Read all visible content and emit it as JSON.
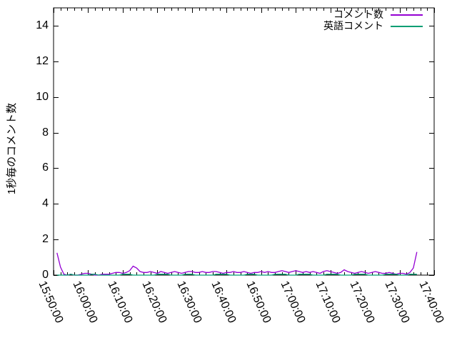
{
  "window": {
    "background": "#ffffff",
    "border_color": "#000000"
  },
  "chart_data": {
    "type": "line",
    "title": "",
    "xlabel": "",
    "ylabel": "1秒毎のコメント数",
    "ylim": [
      0,
      15
    ],
    "ytick_labels": [
      "0",
      "2",
      "4",
      "6",
      "8",
      "10",
      "12",
      "14"
    ],
    "ytick_values": [
      0,
      2,
      4,
      6,
      8,
      10,
      12,
      14
    ],
    "xtick_labels": [
      "15:50:00",
      "16:00:00",
      "16:10:00",
      "16:20:00",
      "16:30:00",
      "16:40:00",
      "16:50:00",
      "17:00:00",
      "17:10:00",
      "17:20:00",
      "17:30:00",
      "17:40:00"
    ],
    "x_axis_start": "15:50:00",
    "x_axis_end": "17:40:00",
    "x_range_minutes": [
      0,
      110
    ],
    "x_major_interval_minutes": 10,
    "x_minor_interval_minutes": 2,
    "grid": false,
    "legend_position": "top-right-inside",
    "series": [
      {
        "name": "コメント数",
        "color": "#9400d3",
        "points": [
          [
            1,
            1.25
          ],
          [
            2,
            0.45
          ],
          [
            3,
            0.05
          ],
          [
            4,
            0
          ],
          [
            5,
            0.05
          ],
          [
            6,
            0
          ],
          [
            7,
            0
          ],
          [
            8,
            0.05
          ],
          [
            9,
            0.1
          ],
          [
            10,
            0.1
          ],
          [
            11,
            0.05
          ],
          [
            12,
            0
          ],
          [
            13,
            0
          ],
          [
            14,
            0.05
          ],
          [
            15,
            0.05
          ],
          [
            16,
            0.05
          ],
          [
            17,
            0.1
          ],
          [
            18,
            0.15
          ],
          [
            19,
            0.15
          ],
          [
            20,
            0.1
          ],
          [
            21,
            0.15
          ],
          [
            22,
            0.25
          ],
          [
            23,
            0.5
          ],
          [
            24,
            0.4
          ],
          [
            25,
            0.2
          ],
          [
            26,
            0.15
          ],
          [
            27,
            0.15
          ],
          [
            28,
            0.2
          ],
          [
            29,
            0.15
          ],
          [
            30,
            0.1
          ],
          [
            31,
            0.2
          ],
          [
            32,
            0.15
          ],
          [
            33,
            0.1
          ],
          [
            34,
            0.15
          ],
          [
            35,
            0.2
          ],
          [
            36,
            0.15
          ],
          [
            37,
            0.1
          ],
          [
            38,
            0.15
          ],
          [
            39,
            0.2
          ],
          [
            40,
            0.2
          ],
          [
            41,
            0.15
          ],
          [
            42,
            0.15
          ],
          [
            43,
            0.2
          ],
          [
            44,
            0.15
          ],
          [
            45,
            0.15
          ],
          [
            46,
            0.2
          ],
          [
            47,
            0.2
          ],
          [
            48,
            0.15
          ],
          [
            49,
            0.1
          ],
          [
            50,
            0.15
          ],
          [
            51,
            0.15
          ],
          [
            52,
            0.2
          ],
          [
            53,
            0.15
          ],
          [
            54,
            0.15
          ],
          [
            55,
            0.2
          ],
          [
            56,
            0.15
          ],
          [
            57,
            0.1
          ],
          [
            58,
            0.15
          ],
          [
            59,
            0.15
          ],
          [
            60,
            0.2
          ],
          [
            61,
            0.15
          ],
          [
            62,
            0.2
          ],
          [
            63,
            0.15
          ],
          [
            64,
            0.15
          ],
          [
            65,
            0.2
          ],
          [
            66,
            0.25
          ],
          [
            67,
            0.2
          ],
          [
            68,
            0.15
          ],
          [
            69,
            0.2
          ],
          [
            70,
            0.25
          ],
          [
            71,
            0.2
          ],
          [
            72,
            0.15
          ],
          [
            73,
            0.2
          ],
          [
            74,
            0.15
          ],
          [
            75,
            0.2
          ],
          [
            76,
            0.15
          ],
          [
            77,
            0.1
          ],
          [
            78,
            0.2
          ],
          [
            79,
            0.25
          ],
          [
            80,
            0.2
          ],
          [
            81,
            0.15
          ],
          [
            82,
            0.1
          ],
          [
            83,
            0.15
          ],
          [
            84,
            0.3
          ],
          [
            85,
            0.2
          ],
          [
            86,
            0.15
          ],
          [
            87,
            0.1
          ],
          [
            88,
            0.15
          ],
          [
            89,
            0.2
          ],
          [
            90,
            0.15
          ],
          [
            91,
            0.1
          ],
          [
            92,
            0.15
          ],
          [
            93,
            0.2
          ],
          [
            94,
            0.15
          ],
          [
            95,
            0.1
          ],
          [
            96,
            0.1
          ],
          [
            97,
            0.15
          ],
          [
            98,
            0.1
          ],
          [
            99,
            0.05
          ],
          [
            100,
            0.1
          ],
          [
            101,
            0.1
          ],
          [
            102,
            0.05
          ],
          [
            103,
            0.15
          ],
          [
            104,
            0.4
          ],
          [
            105,
            1.3
          ]
        ]
      },
      {
        "name": "英語コメント",
        "color": "#009e73",
        "points": [
          [
            1,
            0
          ],
          [
            4,
            0
          ],
          [
            5,
            0.05
          ],
          [
            6,
            0
          ],
          [
            10,
            0
          ],
          [
            11,
            0.05
          ],
          [
            12,
            0.05
          ],
          [
            13,
            0
          ],
          [
            19,
            0
          ],
          [
            20,
            0.05
          ],
          [
            22,
            0.05
          ],
          [
            23,
            0
          ],
          [
            29,
            0
          ],
          [
            30,
            0.05
          ],
          [
            33,
            0.05
          ],
          [
            34,
            0
          ],
          [
            37,
            0
          ],
          [
            38,
            0.05
          ],
          [
            40,
            0.05
          ],
          [
            41,
            0
          ],
          [
            46,
            0
          ],
          [
            47,
            0.05
          ],
          [
            50,
            0.05
          ],
          [
            51,
            0
          ],
          [
            55,
            0
          ],
          [
            56,
            0.05
          ],
          [
            58,
            0.05
          ],
          [
            59,
            0
          ],
          [
            63,
            0
          ],
          [
            64,
            0.05
          ],
          [
            67,
            0.05
          ],
          [
            68,
            0
          ],
          [
            70,
            0
          ],
          [
            71,
            0.05
          ],
          [
            74,
            0.05
          ],
          [
            75,
            0
          ],
          [
            78,
            0
          ],
          [
            79,
            0.05
          ],
          [
            82,
            0.05
          ],
          [
            83,
            0
          ],
          [
            86,
            0
          ],
          [
            87,
            0.05
          ],
          [
            90,
            0.05
          ],
          [
            91,
            0
          ],
          [
            95,
            0
          ],
          [
            96,
            0.05
          ],
          [
            99,
            0.05
          ],
          [
            100,
            0
          ],
          [
            102,
            0
          ],
          [
            103,
            0.05
          ],
          [
            105,
            0.05
          ]
        ]
      }
    ],
    "points_unit": "[minutes after 15:50:00, comments per second]"
  }
}
